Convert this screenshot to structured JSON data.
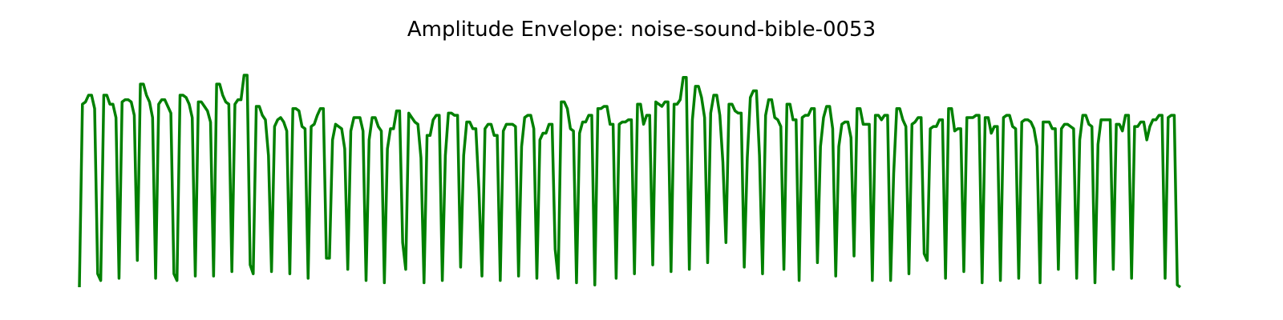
{
  "chart_data": {
    "type": "line",
    "title": "Amplitude Envelope: noise-sound-bible-0053",
    "xlabel": "",
    "ylabel": "",
    "ylim": [
      0,
      1
    ],
    "grid": false,
    "axes_visible": false,
    "series": [
      {
        "color": "#008000",
        "values": [
          0.0,
          0.82,
          0.83,
          0.86,
          0.86,
          0.8,
          0.06,
          0.03,
          0.86,
          0.86,
          0.82,
          0.82,
          0.76,
          0.04,
          0.83,
          0.84,
          0.84,
          0.83,
          0.77,
          0.12,
          0.91,
          0.91,
          0.86,
          0.83,
          0.76,
          0.04,
          0.82,
          0.84,
          0.84,
          0.81,
          0.78,
          0.06,
          0.03,
          0.86,
          0.86,
          0.85,
          0.82,
          0.76,
          0.05,
          0.83,
          0.83,
          0.81,
          0.79,
          0.74,
          0.05,
          0.91,
          0.91,
          0.86,
          0.83,
          0.82,
          0.07,
          0.82,
          0.84,
          0.84,
          0.95,
          0.95,
          0.1,
          0.06,
          0.81,
          0.81,
          0.77,
          0.75,
          0.59,
          0.07,
          0.72,
          0.75,
          0.76,
          0.74,
          0.7,
          0.06,
          0.8,
          0.8,
          0.79,
          0.72,
          0.71,
          0.04,
          0.72,
          0.73,
          0.77,
          0.8,
          0.8,
          0.13,
          0.13,
          0.66,
          0.73,
          0.72,
          0.71,
          0.62,
          0.08,
          0.7,
          0.76,
          0.76,
          0.76,
          0.7,
          0.03,
          0.66,
          0.76,
          0.76,
          0.72,
          0.7,
          0.02,
          0.62,
          0.71,
          0.71,
          0.79,
          0.79,
          0.2,
          0.08,
          0.78,
          0.76,
          0.74,
          0.73,
          0.58,
          0.02,
          0.68,
          0.68,
          0.75,
          0.77,
          0.77,
          0.03,
          0.59,
          0.78,
          0.78,
          0.77,
          0.77,
          0.09,
          0.59,
          0.74,
          0.74,
          0.71,
          0.71,
          0.44,
          0.05,
          0.71,
          0.73,
          0.73,
          0.68,
          0.68,
          0.03,
          0.7,
          0.73,
          0.73,
          0.73,
          0.72,
          0.05,
          0.63,
          0.76,
          0.77,
          0.77,
          0.71,
          0.04,
          0.66,
          0.69,
          0.69,
          0.73,
          0.73,
          0.17,
          0.04,
          0.83,
          0.83,
          0.8,
          0.71,
          0.7,
          0.02,
          0.69,
          0.74,
          0.74,
          0.77,
          0.77,
          0.01,
          0.8,
          0.8,
          0.81,
          0.81,
          0.73,
          0.73,
          0.04,
          0.73,
          0.74,
          0.74,
          0.75,
          0.75,
          0.06,
          0.82,
          0.82,
          0.73,
          0.77,
          0.77,
          0.1,
          0.83,
          0.82,
          0.81,
          0.83,
          0.83,
          0.07,
          0.82,
          0.82,
          0.84,
          0.94,
          0.94,
          0.08,
          0.75,
          0.9,
          0.9,
          0.85,
          0.76,
          0.11,
          0.78,
          0.86,
          0.86,
          0.77,
          0.56,
          0.2,
          0.82,
          0.82,
          0.79,
          0.78,
          0.78,
          0.09,
          0.58,
          0.85,
          0.88,
          0.88,
          0.59,
          0.06,
          0.77,
          0.84,
          0.84,
          0.76,
          0.75,
          0.72,
          0.08,
          0.82,
          0.82,
          0.75,
          0.75,
          0.03,
          0.76,
          0.77,
          0.77,
          0.8,
          0.8,
          0.11,
          0.63,
          0.76,
          0.81,
          0.81,
          0.71,
          0.05,
          0.63,
          0.73,
          0.74,
          0.74,
          0.67,
          0.14,
          0.8,
          0.8,
          0.73,
          0.73,
          0.73,
          0.03,
          0.77,
          0.77,
          0.75,
          0.77,
          0.77,
          0.03,
          0.51,
          0.8,
          0.8,
          0.75,
          0.72,
          0.06,
          0.73,
          0.74,
          0.76,
          0.76,
          0.15,
          0.12,
          0.71,
          0.72,
          0.72,
          0.75,
          0.75,
          0.04,
          0.8,
          0.8,
          0.7,
          0.71,
          0.71,
          0.07,
          0.76,
          0.76,
          0.76,
          0.77,
          0.77,
          0.02,
          0.76,
          0.76,
          0.69,
          0.72,
          0.72,
          0.03,
          0.76,
          0.77,
          0.77,
          0.72,
          0.71,
          0.04,
          0.74,
          0.75,
          0.75,
          0.74,
          0.71,
          0.63,
          0.02,
          0.74,
          0.74,
          0.74,
          0.71,
          0.71,
          0.08,
          0.71,
          0.73,
          0.73,
          0.72,
          0.71,
          0.04,
          0.66,
          0.77,
          0.77,
          0.73,
          0.72,
          0.02,
          0.64,
          0.75,
          0.75,
          0.75,
          0.75,
          0.08,
          0.73,
          0.73,
          0.7,
          0.77,
          0.77,
          0.04,
          0.72,
          0.72,
          0.74,
          0.74,
          0.66,
          0.72,
          0.75,
          0.75,
          0.77,
          0.77,
          0.04,
          0.76,
          0.77,
          0.77,
          0.01,
          0.0
        ]
      }
    ]
  }
}
